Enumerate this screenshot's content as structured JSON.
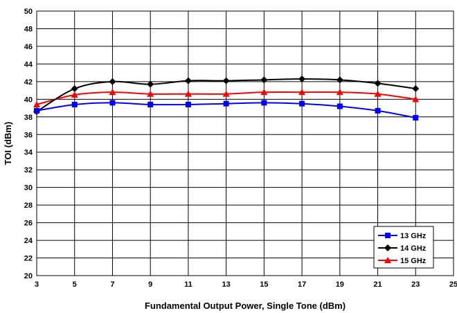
{
  "chart_data": {
    "type": "line",
    "xlabel": "Fundamental Output Power, Single Tone (dBm)",
    "ylabel": "TOI (dBm)",
    "xlim": [
      3,
      25
    ],
    "ylim": [
      20,
      50
    ],
    "xticks": [
      "3",
      "5",
      "7",
      "9",
      "11",
      "13",
      "15",
      "17",
      "19",
      "21",
      "23",
      "25"
    ],
    "yticks": [
      "20",
      "22",
      "24",
      "26",
      "28",
      "30",
      "32",
      "34",
      "36",
      "38",
      "40",
      "42",
      "44",
      "46",
      "48",
      "50"
    ],
    "grid": true,
    "legend_position": "bottom-right",
    "x": [
      3,
      5,
      7,
      9,
      11,
      13,
      15,
      17,
      19,
      21,
      23
    ],
    "series": [
      {
        "name": "13 GHz",
        "color": "#0000FF",
        "marker": "square",
        "values": [
          38.7,
          39.4,
          39.6,
          39.4,
          39.4,
          39.5,
          39.6,
          39.5,
          39.2,
          38.7,
          37.9
        ]
      },
      {
        "name": "14 GHz",
        "color": "#000000",
        "marker": "diamond",
        "values": [
          38.6,
          41.2,
          42.0,
          41.7,
          42.1,
          42.1,
          42.2,
          42.3,
          42.2,
          41.8,
          41.2
        ]
      },
      {
        "name": "15 GHz",
        "color": "#FF0000",
        "marker": "triangle",
        "values": [
          39.4,
          40.5,
          40.8,
          40.6,
          40.6,
          40.6,
          40.8,
          40.8,
          40.8,
          40.6,
          40.0
        ]
      }
    ]
  }
}
